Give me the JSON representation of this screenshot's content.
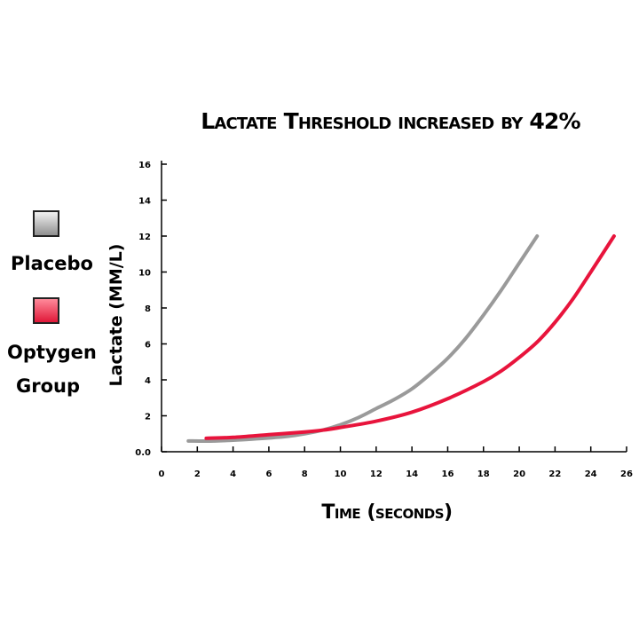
{
  "chart_data": {
    "type": "line",
    "title": "Lactate Threshold increased by 42%",
    "xlabel": "Time (seconds)",
    "ylabel": "Lactate (MM/L)",
    "xlim": [
      0,
      26
    ],
    "ylim": [
      0,
      16
    ],
    "xticks": [
      "0",
      "2",
      "4",
      "6",
      "8",
      "10",
      "12",
      "14",
      "16",
      "18",
      "20",
      "22",
      "24",
      "26"
    ],
    "yticks": [
      "0.0",
      "2",
      "4",
      "6",
      "8",
      "10",
      "12",
      "14",
      "16"
    ],
    "grid": false,
    "legend_position": "left",
    "series": [
      {
        "name": "Placebo",
        "color": "#9a9a9a",
        "x": [
          1.5,
          3,
          5,
          7,
          8,
          9,
          10,
          11,
          12,
          13,
          14,
          15,
          16,
          17,
          18,
          19,
          20,
          21
        ],
        "y": [
          0.6,
          0.6,
          0.7,
          0.85,
          1.0,
          1.2,
          1.5,
          1.9,
          2.4,
          2.9,
          3.5,
          4.3,
          5.2,
          6.3,
          7.6,
          9.0,
          10.5,
          12.0
        ]
      },
      {
        "name": "Optygen Group",
        "color": "#e8143c",
        "x": [
          2.5,
          4,
          6,
          8,
          9,
          10,
          12,
          14,
          16,
          18,
          19,
          20,
          21,
          22,
          23,
          24,
          25.3
        ],
        "y": [
          0.75,
          0.8,
          0.95,
          1.1,
          1.2,
          1.35,
          1.7,
          2.2,
          2.95,
          3.9,
          4.5,
          5.25,
          6.1,
          7.2,
          8.5,
          10.0,
          12.0
        ]
      }
    ]
  },
  "legend": {
    "items": [
      {
        "label": "Placebo",
        "swatch": "gray"
      },
      {
        "label": "Optygen Group",
        "swatch": "red"
      }
    ]
  }
}
